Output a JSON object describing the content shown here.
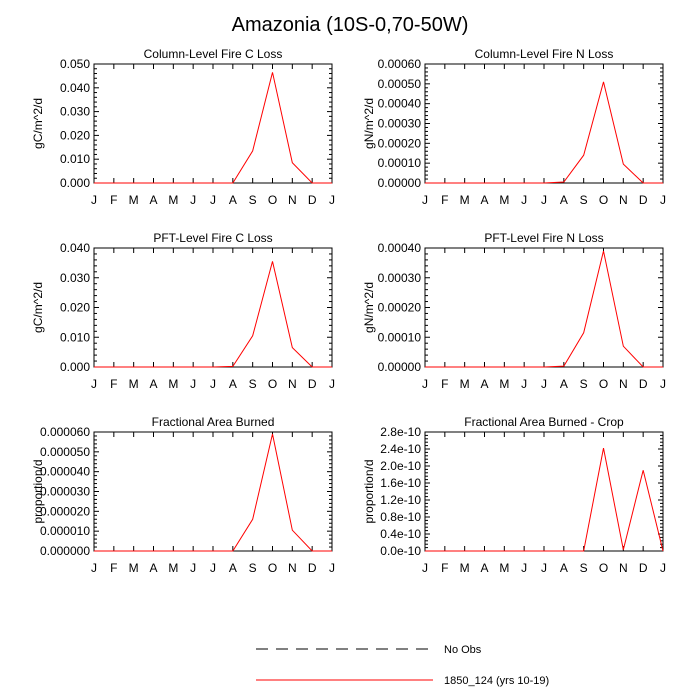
{
  "title": "Amazonia (10S-0,70-50W)",
  "colors": {
    "model": "#ff0000",
    "obs": "#000000",
    "axis": "#000000"
  },
  "months": [
    "J",
    "F",
    "M",
    "A",
    "M",
    "J",
    "J",
    "A",
    "S",
    "O",
    "N",
    "D",
    "J"
  ],
  "legend": [
    {
      "label": "No Obs",
      "style": "dashed",
      "color": "#000000"
    },
    {
      "label": "1850_124 (yrs 10-19)",
      "style": "solid",
      "color": "#ff0000"
    }
  ],
  "chart_data": [
    {
      "type": "line",
      "title": "Column-Level Fire C Loss",
      "ylabel": "gC/m^2/d",
      "ylim": [
        0,
        0.05
      ],
      "yticks": [
        "0.000",
        "0.010",
        "0.020",
        "0.030",
        "0.040",
        "0.050"
      ],
      "categories": [
        "J",
        "F",
        "M",
        "A",
        "M",
        "J",
        "J",
        "A",
        "S",
        "O",
        "N",
        "D",
        "J"
      ],
      "series": [
        {
          "name": "1850_124 (yrs 10-19)",
          "values": [
            0,
            0,
            0,
            0,
            0,
            0,
            0,
            0,
            0.0135,
            0.0465,
            0.0085,
            0,
            0
          ]
        }
      ]
    },
    {
      "type": "line",
      "title": "Column-Level Fire N Loss",
      "ylabel": "gN/m^2/d",
      "ylim": [
        0,
        0.0006
      ],
      "yticks": [
        "0.00000",
        "0.00010",
        "0.00020",
        "0.00030",
        "0.00040",
        "0.00050",
        "0.00060"
      ],
      "categories": [
        "J",
        "F",
        "M",
        "A",
        "M",
        "J",
        "J",
        "A",
        "S",
        "O",
        "N",
        "D",
        "J"
      ],
      "series": [
        {
          "name": "1850_124 (yrs 10-19)",
          "values": [
            0,
            0,
            0,
            0,
            0,
            0,
            0,
            5e-06,
            0.00014,
            0.00051,
            9.5e-05,
            0,
            0
          ]
        }
      ]
    },
    {
      "type": "line",
      "title": "PFT-Level Fire C Loss",
      "ylabel": "gC/m^2/d",
      "ylim": [
        0,
        0.04
      ],
      "yticks": [
        "0.000",
        "0.010",
        "0.020",
        "0.030",
        "0.040"
      ],
      "categories": [
        "J",
        "F",
        "M",
        "A",
        "M",
        "J",
        "J",
        "A",
        "S",
        "O",
        "N",
        "D",
        "J"
      ],
      "series": [
        {
          "name": "1850_124 (yrs 10-19)",
          "values": [
            0,
            0,
            0,
            0,
            0,
            0,
            0,
            0.0002,
            0.0105,
            0.0355,
            0.0065,
            0,
            0
          ]
        }
      ]
    },
    {
      "type": "line",
      "title": "PFT-Level Fire N Loss",
      "ylabel": "gN/m^2/d",
      "ylim": [
        0,
        0.0004
      ],
      "yticks": [
        "0.00000",
        "0.00010",
        "0.00020",
        "0.00030",
        "0.00040"
      ],
      "categories": [
        "J",
        "F",
        "M",
        "A",
        "M",
        "J",
        "J",
        "A",
        "S",
        "O",
        "N",
        "D",
        "J"
      ],
      "series": [
        {
          "name": "1850_124 (yrs 10-19)",
          "values": [
            0,
            0,
            0,
            0,
            0,
            0,
            0,
            3e-06,
            0.000115,
            0.00039,
            7e-05,
            0,
            0
          ]
        }
      ]
    },
    {
      "type": "line",
      "title": "Fractional Area Burned",
      "ylabel": "proportion/d",
      "ylim": [
        0,
        6e-05
      ],
      "yticks": [
        "0.000000",
        "0.000010",
        "0.000020",
        "0.000030",
        "0.000040",
        "0.000050",
        "0.000060"
      ],
      "categories": [
        "J",
        "F",
        "M",
        "A",
        "M",
        "J",
        "J",
        "A",
        "S",
        "O",
        "N",
        "D",
        "J"
      ],
      "series": [
        {
          "name": "1850_124 (yrs 10-19)",
          "values": [
            0,
            0,
            0,
            0,
            0,
            0,
            0,
            0,
            1.6e-05,
            5.9e-05,
            1.05e-05,
            0,
            0
          ]
        }
      ]
    },
    {
      "type": "line",
      "title": "Fractional Area Burned - Crop",
      "ylabel": "proportion/d",
      "ylim": [
        0,
        2.8e-10
      ],
      "yticks": [
        "0.0e-10",
        "0.4e-10",
        "0.8e-10",
        "1.2e-10",
        "1.6e-10",
        "2.0e-10",
        "2.4e-10",
        "2.8e-10"
      ],
      "categories": [
        "J",
        "F",
        "M",
        "A",
        "M",
        "J",
        "J",
        "A",
        "S",
        "O",
        "N",
        "D",
        "J"
      ],
      "series": [
        {
          "name": "1850_124 (yrs 10-19)",
          "values": [
            0,
            0,
            0,
            0,
            0,
            0,
            0,
            0,
            0,
            2.42e-10,
            3e-12,
            1.9e-10,
            0
          ]
        }
      ]
    }
  ]
}
